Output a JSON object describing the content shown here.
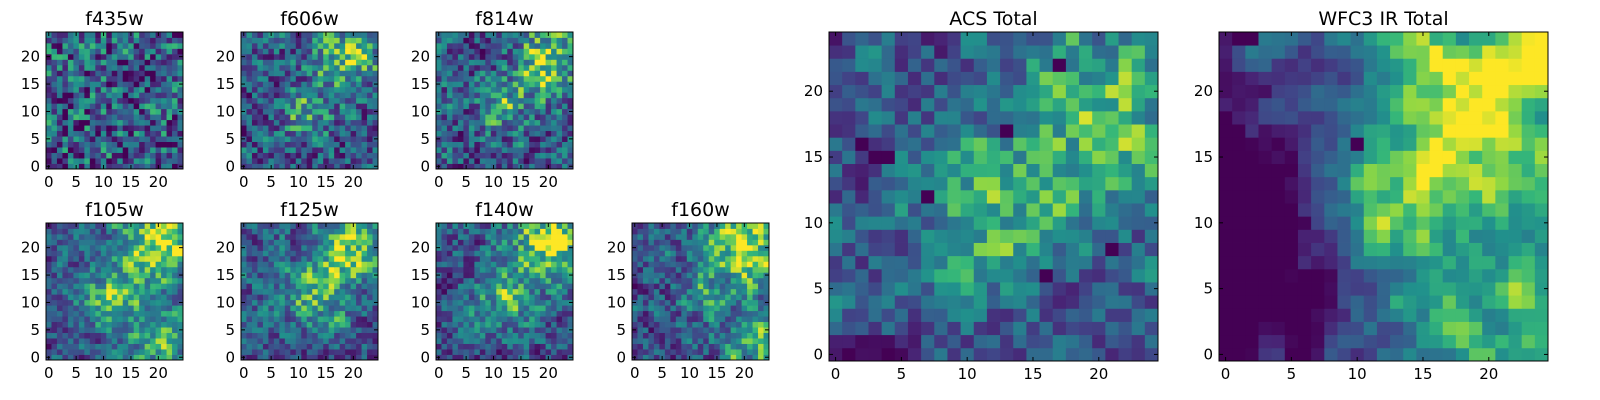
{
  "chart_data": [
    {
      "type": "heatmap",
      "title": "f435w",
      "grid": "25x25",
      "xlim": [
        0,
        24
      ],
      "ylim": [
        0,
        24
      ],
      "xticks": [
        0,
        5,
        10,
        15,
        20
      ],
      "yticks": [
        0,
        5,
        10,
        15,
        20
      ],
      "colormap": "viridis",
      "pattern": {
        "seed": 11,
        "noise": 0.9,
        "blobs": []
      }
    },
    {
      "type": "heatmap",
      "title": "f606w",
      "grid": "25x25",
      "xlim": [
        0,
        24
      ],
      "ylim": [
        0,
        24
      ],
      "xticks": [
        0,
        5,
        10,
        15,
        20
      ],
      "yticks": [
        0,
        5,
        10,
        15,
        20
      ],
      "colormap": "viridis",
      "pattern": {
        "seed": 23,
        "noise": 0.7,
        "blobs": [
          [
            19,
            20,
            4,
            0.5
          ],
          [
            11,
            10,
            3,
            0.35
          ]
        ]
      }
    },
    {
      "type": "heatmap",
      "title": "f814w",
      "grid": "25x25",
      "xlim": [
        0,
        24
      ],
      "ylim": [
        0,
        24
      ],
      "xticks": [
        0,
        5,
        10,
        15,
        20
      ],
      "yticks": [
        0,
        5,
        10,
        15,
        20
      ],
      "colormap": "viridis",
      "pattern": {
        "seed": 37,
        "noise": 0.7,
        "blobs": [
          [
            20,
            19,
            4,
            0.55
          ],
          [
            12,
            11,
            3,
            0.35
          ]
        ]
      }
    },
    {
      "type": "heatmap",
      "title": "f105w",
      "grid": "25x25",
      "xlim": [
        0,
        24
      ],
      "ylim": [
        0,
        24
      ],
      "xticks": [
        0,
        5,
        10,
        15,
        20
      ],
      "yticks": [
        0,
        5,
        10,
        15,
        20
      ],
      "colormap": "viridis",
      "pattern": {
        "seed": 41,
        "noise": 0.5,
        "blobs": [
          [
            20,
            21,
            5,
            0.55
          ],
          [
            12,
            11,
            4,
            0.45
          ],
          [
            21,
            3,
            4,
            0.35
          ]
        ]
      }
    },
    {
      "type": "heatmap",
      "title": "f125w",
      "grid": "25x25",
      "xlim": [
        0,
        24
      ],
      "ylim": [
        0,
        24
      ],
      "xticks": [
        0,
        5,
        10,
        15,
        20
      ],
      "yticks": [
        0,
        5,
        10,
        15,
        20
      ],
      "colormap": "viridis",
      "pattern": {
        "seed": 53,
        "noise": 0.55,
        "blobs": [
          [
            20,
            20,
            5,
            0.55
          ],
          [
            13,
            11,
            4,
            0.35
          ]
        ]
      }
    },
    {
      "type": "heatmap",
      "title": "f140w",
      "grid": "25x25",
      "xlim": [
        0,
        24
      ],
      "ylim": [
        0,
        24
      ],
      "xticks": [
        0,
        5,
        10,
        15,
        20
      ],
      "yticks": [
        0,
        5,
        10,
        15,
        20
      ],
      "colormap": "viridis",
      "pattern": {
        "seed": 67,
        "noise": 0.55,
        "blobs": [
          [
            21,
            21,
            5,
            0.6
          ],
          [
            12,
            11,
            4,
            0.35
          ]
        ]
      }
    },
    {
      "type": "heatmap",
      "title": "f160w",
      "grid": "25x25",
      "xlim": [
        0,
        24
      ],
      "ylim": [
        0,
        24
      ],
      "xticks": [
        0,
        5,
        10,
        15,
        20
      ],
      "yticks": [
        0,
        5,
        10,
        15,
        20
      ],
      "colormap": "viridis",
      "pattern": {
        "seed": 79,
        "noise": 0.55,
        "blobs": [
          [
            20,
            20,
            5,
            0.6
          ],
          [
            22,
            2,
            4,
            0.4
          ],
          [
            13,
            11,
            3,
            0.25
          ]
        ]
      }
    },
    {
      "type": "heatmap",
      "title": "ACS Total",
      "grid": "25x25",
      "xlim": [
        0,
        24
      ],
      "ylim": [
        0,
        24
      ],
      "xticks": [
        0,
        5,
        10,
        15,
        20
      ],
      "yticks": [
        0,
        5,
        10,
        15,
        20
      ],
      "colormap": "viridis",
      "pattern": {
        "seed": 97,
        "noise": 0.45,
        "blobs": [
          [
            20,
            19,
            5,
            0.4
          ],
          [
            12,
            11,
            4,
            0.35
          ]
        ],
        "dark": [
          [
            3,
            15
          ],
          [
            4,
            15
          ],
          [
            2,
            16
          ],
          [
            7,
            12
          ],
          [
            17,
            22
          ],
          [
            13,
            17
          ],
          [
            21,
            8
          ],
          [
            16,
            6
          ],
          [
            1,
            0
          ]
        ]
      }
    },
    {
      "type": "heatmap",
      "title": "WFC3 IR Total",
      "grid": "25x25",
      "xlim": [
        0,
        24
      ],
      "ylim": [
        0,
        24
      ],
      "xticks": [
        0,
        5,
        10,
        15,
        20
      ],
      "yticks": [
        0,
        5,
        10,
        15,
        20
      ],
      "colormap": "viridis",
      "pattern": {
        "seed": 113,
        "noise": 0.25,
        "blobs": [
          [
            20,
            20,
            6,
            0.7
          ],
          [
            12,
            11,
            4,
            0.4
          ],
          [
            21,
            1,
            5,
            0.45
          ],
          [
            0,
            12,
            6,
            -0.5
          ],
          [
            3,
            4,
            4,
            -0.45
          ]
        ],
        "dark": [
          [
            1,
            24
          ],
          [
            2,
            24
          ],
          [
            0,
            0
          ],
          [
            1,
            0
          ],
          [
            3,
            3
          ],
          [
            3,
            4
          ],
          [
            10,
            16
          ],
          [
            0,
            2
          ]
        ]
      }
    }
  ]
}
